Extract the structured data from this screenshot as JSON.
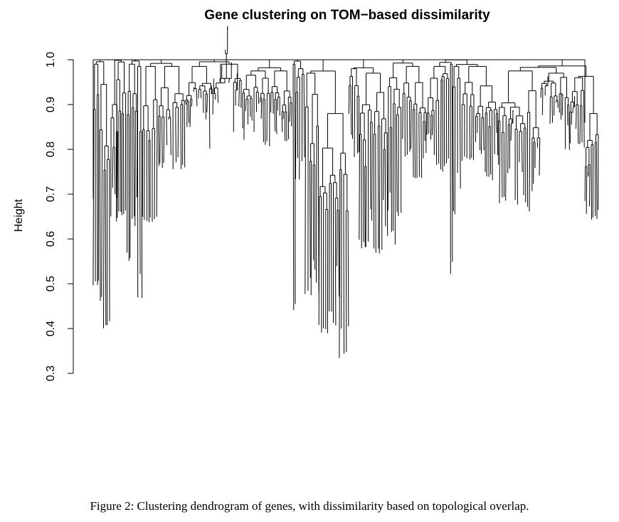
{
  "chart_data": {
    "type": "dendrogram",
    "title": "Gene clustering on TOM−based dissimilarity",
    "xlabel": "",
    "ylabel": "Height",
    "ylim": [
      0.3,
      1.0
    ],
    "yticks": [
      0.3,
      0.4,
      0.5,
      0.6,
      0.7,
      0.8,
      0.9,
      1.0
    ],
    "ytick_labels": [
      "0.3",
      "0.4",
      "0.5",
      "0.6",
      "0.7",
      "0.8",
      "0.9",
      "1.0"
    ],
    "root_height": 1.0,
    "leaf_floor_range": [
      0.33,
      0.82
    ],
    "color": "#000000"
  },
  "caption": "Figure 2: Clustering dendrogram of genes, with dissimilarity based on topological overlap."
}
